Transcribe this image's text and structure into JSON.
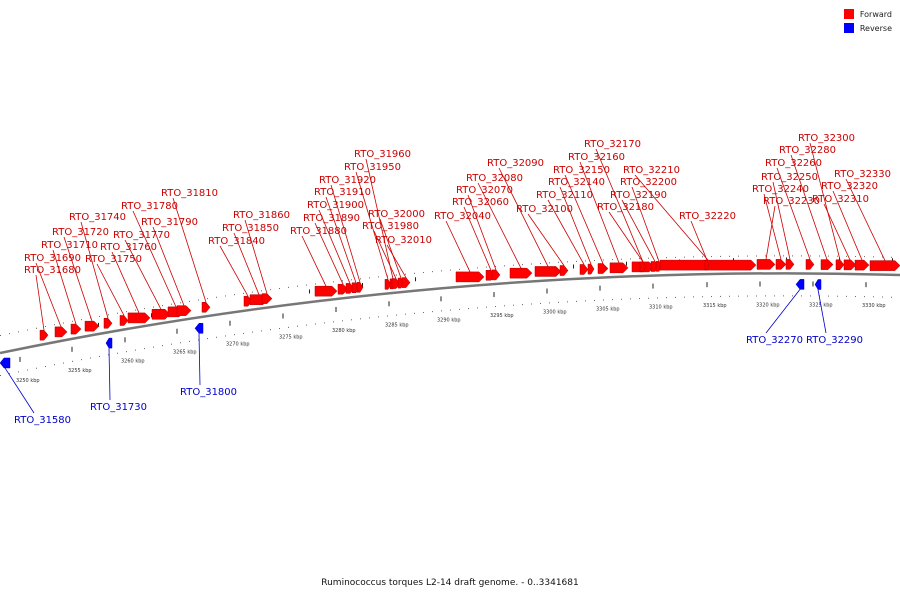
{
  "legend": [
    {
      "label": "Forward",
      "color": "#ff0000"
    },
    {
      "label": "Reverse",
      "color": "#0000ff"
    }
  ],
  "caption": "Ruminococcus torques L2-14 draft genome. - 0..3341681",
  "colors": {
    "forward": "#ff0000",
    "reverse": "#0000ff",
    "forward_label": "#cc0000",
    "reverse_label": "#0000cc",
    "backbone": "#777777"
  },
  "ticks": [
    "3250 kbp",
    "3255 kbp",
    "3260 kbp",
    "3265 kbp",
    "3270 kbp",
    "3275 kbp",
    "3280 kbp",
    "3285 kbp",
    "3290 kbp",
    "3295 kbp",
    "3300 kbp",
    "3305 kbp",
    "3310 kbp",
    "3315 kbp",
    "3320 kbp",
    "3325 kbp",
    "3330 kbp"
  ],
  "forward_genes": [
    {
      "name": "RTO_31680"
    },
    {
      "name": "RTO_31690"
    },
    {
      "name": "RTO_31710"
    },
    {
      "name": "RTO_31720"
    },
    {
      "name": "RTO_31740"
    },
    {
      "name": "RTO_31750"
    },
    {
      "name": "RTO_31760"
    },
    {
      "name": "RTO_31770"
    },
    {
      "name": "RTO_31780"
    },
    {
      "name": "RTO_31790"
    },
    {
      "name": "RTO_31810"
    },
    {
      "name": "RTO_31840"
    },
    {
      "name": "RTO_31850"
    },
    {
      "name": "RTO_31860"
    },
    {
      "name": "RTO_31880"
    },
    {
      "name": "RTO_31890"
    },
    {
      "name": "RTO_31900"
    },
    {
      "name": "RTO_31910"
    },
    {
      "name": "RTO_31920"
    },
    {
      "name": "RTO_31950"
    },
    {
      "name": "RTO_31960"
    },
    {
      "name": "RTO_31980"
    },
    {
      "name": "RTO_32000"
    },
    {
      "name": "RTO_32010"
    },
    {
      "name": "RTO_32040"
    },
    {
      "name": "RTO_32060"
    },
    {
      "name": "RTO_32070"
    },
    {
      "name": "RTO_32080"
    },
    {
      "name": "RTO_32090"
    },
    {
      "name": "RTO_32100"
    },
    {
      "name": "RTO_32110"
    },
    {
      "name": "RTO_32140"
    },
    {
      "name": "RTO_32150"
    },
    {
      "name": "RTO_32160"
    },
    {
      "name": "RTO_32170"
    },
    {
      "name": "RTO_32180"
    },
    {
      "name": "RTO_32190"
    },
    {
      "name": "RTO_32200"
    },
    {
      "name": "RTO_32210"
    },
    {
      "name": "RTO_32220"
    },
    {
      "name": "RTO_32230"
    },
    {
      "name": "RTO_32240"
    },
    {
      "name": "RTO_32250"
    },
    {
      "name": "RTO_32260"
    },
    {
      "name": "RTO_32280"
    },
    {
      "name": "RTO_32300"
    },
    {
      "name": "RTO_32310"
    },
    {
      "name": "RTO_32320"
    },
    {
      "name": "RTO_32330"
    }
  ],
  "reverse_genes": [
    {
      "name": "RTO_31580"
    },
    {
      "name": "RTO_31730"
    },
    {
      "name": "RTO_31800"
    },
    {
      "name": "RTO_32270"
    },
    {
      "name": "RTO_32290"
    }
  ]
}
